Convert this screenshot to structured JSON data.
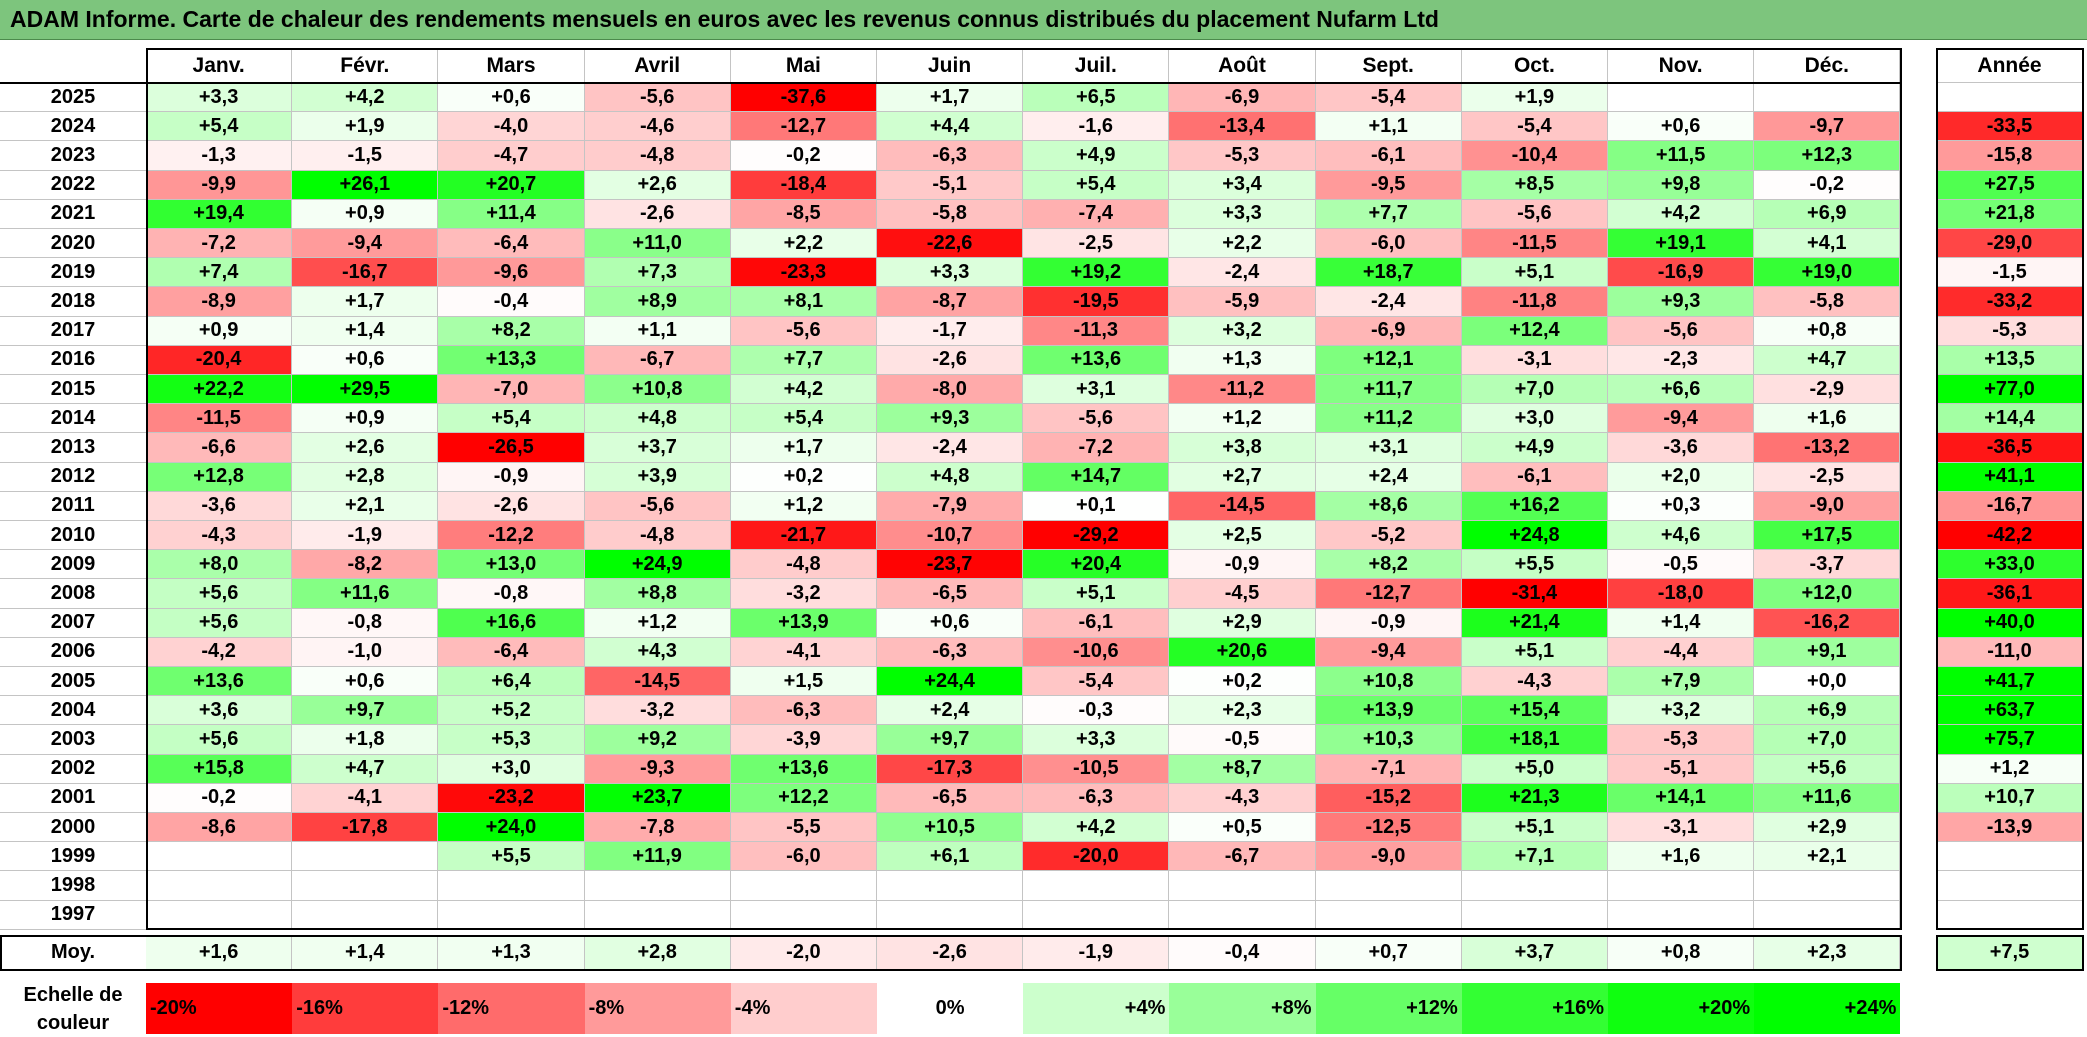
{
  "title": "ADAM Informe. Carte de chaleur des rendements mensuels en euros avec les revenus connus distribués du placement Nufarm Ltd",
  "colors": {
    "title_bg": "#7dc57d",
    "negative": "#ff0000",
    "neutral": "#ffffff",
    "positive": "#00ff00"
  },
  "chart_data": {
    "type": "heatmap",
    "title": "ADAM Informe. Carte de chaleur des rendements mensuels en euros avec les revenus connus distribués du placement Nufarm Ltd",
    "columns": [
      "Janv.",
      "Févr.",
      "Mars",
      "Avril",
      "Mai",
      "Juin",
      "Juil.",
      "Août",
      "Sept.",
      "Oct.",
      "Nov.",
      "Déc."
    ],
    "year_column_label": "Année",
    "rows": [
      {
        "year": "2025",
        "values": [
          "+3,3",
          "+4,2",
          "+0,6",
          "-5,6",
          "-37,6",
          "+1,7",
          "+6,5",
          "-6,9",
          "-5,4",
          "+1,9",
          "",
          ""
        ],
        "annual": ""
      },
      {
        "year": "2024",
        "values": [
          "+5,4",
          "+1,9",
          "-4,0",
          "-4,6",
          "-12,7",
          "+4,4",
          "-1,6",
          "-13,4",
          "+1,1",
          "-5,4",
          "+0,6",
          "-9,7"
        ],
        "annual": "-33,5"
      },
      {
        "year": "2023",
        "values": [
          "-1,3",
          "-1,5",
          "-4,7",
          "-4,8",
          "-0,2",
          "-6,3",
          "+4,9",
          "-5,3",
          "-6,1",
          "-10,4",
          "+11,5",
          "+12,3"
        ],
        "annual": "-15,8"
      },
      {
        "year": "2022",
        "values": [
          "-9,9",
          "+26,1",
          "+20,7",
          "+2,6",
          "-18,4",
          "-5,1",
          "+5,4",
          "+3,4",
          "-9,5",
          "+8,5",
          "+9,8",
          "-0,2"
        ],
        "annual": "+27,5"
      },
      {
        "year": "2021",
        "values": [
          "+19,4",
          "+0,9",
          "+11,4",
          "-2,6",
          "-8,5",
          "-5,8",
          "-7,4",
          "+3,3",
          "+7,7",
          "-5,6",
          "+4,2",
          "+6,9"
        ],
        "annual": "+21,8"
      },
      {
        "year": "2020",
        "values": [
          "-7,2",
          "-9,4",
          "-6,4",
          "+11,0",
          "+2,2",
          "-22,6",
          "-2,5",
          "+2,2",
          "-6,0",
          "-11,5",
          "+19,1",
          "+4,1"
        ],
        "annual": "-29,0"
      },
      {
        "year": "2019",
        "values": [
          "+7,4",
          "-16,7",
          "-9,6",
          "+7,3",
          "-23,3",
          "+3,3",
          "+19,2",
          "-2,4",
          "+18,7",
          "+5,1",
          "-16,9",
          "+19,0"
        ],
        "annual": "-1,5"
      },
      {
        "year": "2018",
        "values": [
          "-8,9",
          "+1,7",
          "-0,4",
          "+8,9",
          "+8,1",
          "-8,7",
          "-19,5",
          "-5,9",
          "-2,4",
          "-11,8",
          "+9,3",
          "-5,8"
        ],
        "annual": "-33,2"
      },
      {
        "year": "2017",
        "values": [
          "+0,9",
          "+1,4",
          "+8,2",
          "+1,1",
          "-5,6",
          "-1,7",
          "-11,3",
          "+3,2",
          "-6,9",
          "+12,4",
          "-5,6",
          "+0,8"
        ],
        "annual": "-5,3"
      },
      {
        "year": "2016",
        "values": [
          "-20,4",
          "+0,6",
          "+13,3",
          "-6,7",
          "+7,7",
          "-2,6",
          "+13,6",
          "+1,3",
          "+12,1",
          "-3,1",
          "-2,3",
          "+4,7"
        ],
        "annual": "+13,5"
      },
      {
        "year": "2015",
        "values": [
          "+22,2",
          "+29,5",
          "-7,0",
          "+10,8",
          "+4,2",
          "-8,0",
          "+3,1",
          "-11,2",
          "+11,7",
          "+7,0",
          "+6,6",
          "-2,9"
        ],
        "annual": "+77,0"
      },
      {
        "year": "2014",
        "values": [
          "-11,5",
          "+0,9",
          "+5,4",
          "+4,8",
          "+5,4",
          "+9,3",
          "-5,6",
          "+1,2",
          "+11,2",
          "+3,0",
          "-9,4",
          "+1,6"
        ],
        "annual": "+14,4"
      },
      {
        "year": "2013",
        "values": [
          "-6,6",
          "+2,6",
          "-26,5",
          "+3,7",
          "+1,7",
          "-2,4",
          "-7,2",
          "+3,8",
          "+3,1",
          "+4,9",
          "-3,6",
          "-13,2"
        ],
        "annual": "-36,5"
      },
      {
        "year": "2012",
        "values": [
          "+12,8",
          "+2,8",
          "-0,9",
          "+3,9",
          "+0,2",
          "+4,8",
          "+14,7",
          "+2,7",
          "+2,4",
          "-6,1",
          "+2,0",
          "-2,5"
        ],
        "annual": "+41,1"
      },
      {
        "year": "2011",
        "values": [
          "-3,6",
          "+2,1",
          "-2,6",
          "-5,6",
          "+1,2",
          "-7,9",
          "+0,1",
          "-14,5",
          "+8,6",
          "+16,2",
          "+0,3",
          "-9,0"
        ],
        "annual": "-16,7"
      },
      {
        "year": "2010",
        "values": [
          "-4,3",
          "-1,9",
          "-12,2",
          "-4,8",
          "-21,7",
          "-10,7",
          "-29,2",
          "+2,5",
          "-5,2",
          "+24,8",
          "+4,6",
          "+17,5"
        ],
        "annual": "-42,2"
      },
      {
        "year": "2009",
        "values": [
          "+8,0",
          "-8,2",
          "+13,0",
          "+24,9",
          "-4,8",
          "-23,7",
          "+20,4",
          "-0,9",
          "+8,2",
          "+5,5",
          "-0,5",
          "-3,7"
        ],
        "annual": "+33,0"
      },
      {
        "year": "2008",
        "values": [
          "+5,6",
          "+11,6",
          "-0,8",
          "+8,8",
          "-3,2",
          "-6,5",
          "+5,1",
          "-4,5",
          "-12,7",
          "-31,4",
          "-18,0",
          "+12,0"
        ],
        "annual": "-36,1"
      },
      {
        "year": "2007",
        "values": [
          "+5,6",
          "-0,8",
          "+16,6",
          "+1,2",
          "+13,9",
          "+0,6",
          "-6,1",
          "+2,9",
          "-0,9",
          "+21,4",
          "+1,4",
          "-16,2"
        ],
        "annual": "+40,0"
      },
      {
        "year": "2006",
        "values": [
          "-4,2",
          "-1,0",
          "-6,4",
          "+4,3",
          "-4,1",
          "-6,3",
          "-10,6",
          "+20,6",
          "-9,4",
          "+5,1",
          "-4,4",
          "+9,1"
        ],
        "annual": "-11,0"
      },
      {
        "year": "2005",
        "values": [
          "+13,6",
          "+0,6",
          "+6,4",
          "-14,5",
          "+1,5",
          "+24,4",
          "-5,4",
          "+0,2",
          "+10,8",
          "-4,3",
          "+7,9",
          "+0,0"
        ],
        "annual": "+41,7"
      },
      {
        "year": "2004",
        "values": [
          "+3,6",
          "+9,7",
          "+5,2",
          "-3,2",
          "-6,3",
          "+2,4",
          "-0,3",
          "+2,3",
          "+13,9",
          "+15,4",
          "+3,2",
          "+6,9"
        ],
        "annual": "+63,7"
      },
      {
        "year": "2003",
        "values": [
          "+5,6",
          "+1,8",
          "+5,3",
          "+9,2",
          "-3,9",
          "+9,7",
          "+3,3",
          "-0,5",
          "+10,3",
          "+18,1",
          "-5,3",
          "+7,0"
        ],
        "annual": "+75,7"
      },
      {
        "year": "2002",
        "values": [
          "+15,8",
          "+4,7",
          "+3,0",
          "-9,3",
          "+13,6",
          "-17,3",
          "-10,5",
          "+8,7",
          "-7,1",
          "+5,0",
          "-5,1",
          "+5,6"
        ],
        "annual": "+1,2"
      },
      {
        "year": "2001",
        "values": [
          "-0,2",
          "-4,1",
          "-23,2",
          "+23,7",
          "+12,2",
          "-6,5",
          "-6,3",
          "-4,3",
          "-15,2",
          "+21,3",
          "+14,1",
          "+11,6"
        ],
        "annual": "+10,7"
      },
      {
        "year": "2000",
        "values": [
          "-8,6",
          "-17,8",
          "+24,0",
          "-7,8",
          "-5,5",
          "+10,5",
          "+4,2",
          "+0,5",
          "-12,5",
          "+5,1",
          "-3,1",
          "+2,9"
        ],
        "annual": "-13,9"
      },
      {
        "year": "1999",
        "values": [
          "",
          "",
          "+5,5",
          "+11,9",
          "-6,0",
          "+6,1",
          "-20,0",
          "-6,7",
          "-9,0",
          "+7,1",
          "+1,6",
          "+2,1"
        ],
        "annual": ""
      },
      {
        "year": "1998",
        "values": [
          "",
          "",
          "",
          "",
          "",
          "",
          "",
          "",
          "",
          "",
          "",
          ""
        ],
        "annual": ""
      },
      {
        "year": "1997",
        "values": [
          "",
          "",
          "",
          "",
          "",
          "",
          "",
          "",
          "",
          "",
          "",
          ""
        ],
        "annual": ""
      }
    ],
    "average": {
      "label": "Moy.",
      "values": [
        "+1,6",
        "+1,4",
        "+1,3",
        "+2,8",
        "-2,0",
        "-2,6",
        "-1,9",
        "-0,4",
        "+0,7",
        "+3,7",
        "+0,8",
        "+2,3"
      ],
      "annual": "+7,5"
    },
    "color_scale": {
      "label": "Echelle de couleur",
      "steps": [
        {
          "label": "-20%",
          "value": -20,
          "color": "#ff0000"
        },
        {
          "label": "-16%",
          "value": -16,
          "color": "#ff3c3c"
        },
        {
          "label": "-12%",
          "value": -12,
          "color": "#ff6b6b"
        },
        {
          "label": "-8%",
          "value": -8,
          "color": "#ff9a9a"
        },
        {
          "label": "-4%",
          "value": -4,
          "color": "#ffcdcd"
        },
        {
          "label": "0%",
          "value": 0,
          "color": "#ffffff"
        },
        {
          "label": "+4%",
          "value": 4,
          "color": "#ccffcc"
        },
        {
          "label": "+8%",
          "value": 8,
          "color": "#99ff99"
        },
        {
          "label": "+12%",
          "value": 12,
          "color": "#66ff66"
        },
        {
          "label": "+16%",
          "value": 16,
          "color": "#33ff33"
        },
        {
          "label": "+20%",
          "value": 20,
          "color": "#0fff0f"
        },
        {
          "label": "+24%",
          "value": 24,
          "color": "#00ff00"
        }
      ]
    }
  }
}
